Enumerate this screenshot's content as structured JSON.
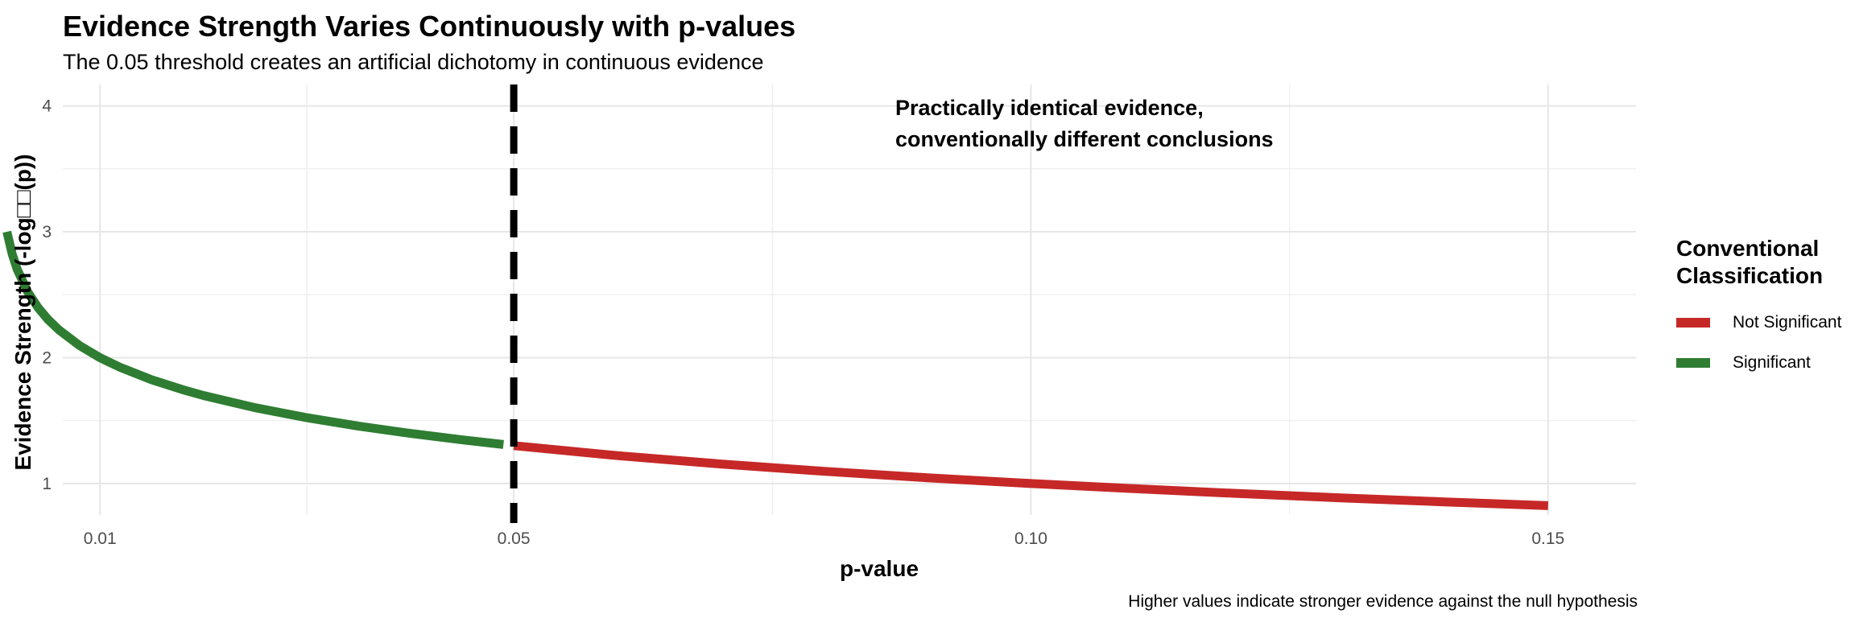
{
  "chart_data": {
    "type": "line",
    "title": "Evidence Strength Varies Continuously with p-values",
    "subtitle": "The 0.05 threshold creates an artificial dichotomy in continuous evidence",
    "caption": "Higher values indicate stronger evidence against the null hypothesis",
    "xlabel": "p-value",
    "ylabel": "Evidence Strength (-log□□(p))",
    "xlim": [
      0.0064,
      0.1585
    ],
    "ylim": [
      0.75,
      4.17
    ],
    "x_ticks": [
      0.01,
      0.05,
      0.1,
      0.15
    ],
    "x_tick_labels": [
      "0.01",
      "0.05",
      "0.10",
      "0.15"
    ],
    "y_ticks": [
      1,
      2,
      3,
      4
    ],
    "y_tick_labels": [
      "1",
      "2",
      "3",
      "4"
    ],
    "grid": true,
    "threshold": {
      "x": 0.05,
      "style": "dashed"
    },
    "annotation": {
      "lines": [
        "Practically identical evidence,",
        "conventionally different conclusions"
      ],
      "x": 0.08,
      "y": 4.0
    },
    "legend_title": "Conventional Classification",
    "legend_title_lines": [
      "Conventional",
      "Classification"
    ],
    "legend_position": "right",
    "series": [
      {
        "name": "Not Significant",
        "color": "#c62828",
        "x": [
          0.05,
          0.06,
          0.07,
          0.08,
          0.09,
          0.1,
          0.11,
          0.12,
          0.13,
          0.14,
          0.15
        ],
        "y": [
          1.301,
          1.222,
          1.155,
          1.097,
          1.046,
          1.0,
          0.959,
          0.921,
          0.886,
          0.854,
          0.824
        ]
      },
      {
        "name": "Significant",
        "color": "#2e7d32",
        "x": [
          0.001,
          0.0015,
          0.002,
          0.003,
          0.004,
          0.005,
          0.006,
          0.008,
          0.01,
          0.012,
          0.015,
          0.018,
          0.02,
          0.025,
          0.03,
          0.035,
          0.04,
          0.045,
          0.049
        ],
        "y": [
          3.0,
          2.824,
          2.699,
          2.523,
          2.398,
          2.301,
          2.222,
          2.097,
          2.0,
          1.921,
          1.824,
          1.745,
          1.699,
          1.602,
          1.523,
          1.456,
          1.398,
          1.347,
          1.31
        ]
      }
    ]
  }
}
